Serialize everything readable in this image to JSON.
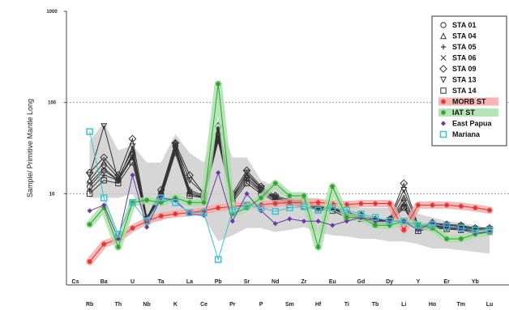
{
  "chart_data": {
    "type": "line",
    "yscale": "log",
    "ylim": [
      1,
      1000
    ],
    "ylabel": "Sample/ Primitive Mantle Long",
    "y_ticks": [
      "1000",
      "100",
      "10"
    ],
    "x_labels_top": [
      "Cs",
      "Ba",
      "U",
      "Ta",
      "La",
      "Pb",
      "Sr",
      "Nd",
      "Zr",
      "Eu",
      "Gd",
      "Dy",
      "Y",
      "Er",
      "Yb"
    ],
    "x_labels_bottom": [
      "Rb",
      "Th",
      "Nb",
      "K",
      "Ce",
      "Pr",
      "P",
      "Sm",
      "Hf",
      "Ti",
      "Tb",
      "Li",
      "Ho",
      "Tm",
      "Lu"
    ],
    "categories": [
      "Cs",
      "Rb",
      "Ba",
      "Th",
      "U",
      "Nb",
      "Ta",
      "K",
      "La",
      "Ce",
      "Pb",
      "Pr",
      "Sr",
      "P",
      "Nd",
      "Sm",
      "Zr",
      "Hf",
      "Eu",
      "Ti",
      "Gd",
      "Tb",
      "Dy",
      "Li",
      "Y",
      "Ho",
      "Er",
      "Tm",
      "Yb",
      "Lu"
    ],
    "grid_lines": [
      100,
      10
    ],
    "legend_position": "top-right",
    "envelope": {
      "color": "#c8c8c8",
      "upper": [
        null,
        38,
        60,
        30,
        34,
        22,
        22,
        45,
        28,
        22,
        65,
        25,
        25,
        14,
        12,
        10,
        9,
        9,
        8,
        8,
        7,
        7,
        7,
        10,
        6,
        5.5,
        5,
        4.8,
        4.5,
        4.2
      ],
      "lower": [
        null,
        9,
        9,
        9,
        10,
        5,
        5,
        6,
        6,
        5.5,
        3,
        3.5,
        4.2,
        4.2,
        3.8,
        4,
        4.3,
        3.8,
        3.5,
        3.4,
        3.2,
        3.2,
        3,
        3,
        2.8,
        2.5,
        2.5,
        2.4,
        2.3,
        2.2
      ]
    },
    "series": [
      {
        "name": "STA 01",
        "marker": "circle",
        "color": "#333333",
        "values": [
          null,
          12,
          18,
          14,
          27,
          5,
          10,
          33,
          10,
          9,
          44,
          9,
          15,
          11,
          9,
          8,
          8,
          7,
          7,
          6,
          5.5,
          5,
          5,
          7,
          4.2,
          4.5,
          4.3,
          4.3,
          4,
          4
        ]
      },
      {
        "name": "STA 04",
        "marker": "triangle",
        "color": "#333333",
        "values": [
          null,
          14,
          22,
          15,
          30,
          5.2,
          10.5,
          36,
          11,
          9.5,
          48,
          9.5,
          16,
          11.5,
          9,
          8,
          8.2,
          7,
          7,
          6,
          5.6,
          5,
          5,
          9,
          4.2,
          4.6,
          4.4,
          4.2,
          4,
          4
        ]
      },
      {
        "name": "STA 05",
        "marker": "plus",
        "color": "#333333",
        "values": [
          null,
          11,
          16,
          14,
          25,
          5,
          9.5,
          30,
          10,
          9,
          40,
          8.5,
          14,
          10.5,
          8.5,
          7.8,
          7.6,
          6.8,
          6.8,
          5.8,
          5.5,
          4.8,
          5,
          7.5,
          4,
          4.3,
          4.2,
          4.1,
          4,
          3.9
        ]
      },
      {
        "name": "STA 06",
        "marker": "x",
        "color": "#333333",
        "values": [
          null,
          13,
          19,
          14,
          26,
          5.1,
          10,
          31,
          10.5,
          9.2,
          42,
          9,
          15,
          10.8,
          8.8,
          8,
          7.8,
          7,
          6.9,
          6,
          5.6,
          5,
          5,
          8,
          4.3,
          4.4,
          4.3,
          4.2,
          4,
          4
        ]
      },
      {
        "name": "STA 09",
        "marker": "diamond",
        "color": "#333333",
        "values": [
          null,
          17,
          25,
          16,
          40,
          5.4,
          11,
          36,
          16,
          10,
          55,
          10,
          18,
          12,
          9.5,
          8.5,
          8.5,
          7.2,
          7.2,
          6.2,
          5.8,
          5.2,
          5.2,
          13,
          4.5,
          4.8,
          4.6,
          4.5,
          4.2,
          4.2
        ]
      },
      {
        "name": "STA 13",
        "marker": "triangle-down",
        "color": "#333333",
        "values": [
          null,
          16,
          55,
          14,
          33,
          5.2,
          10,
          34,
          14,
          10,
          50,
          9,
          17,
          11.5,
          9.2,
          8.2,
          8.3,
          7,
          7,
          6,
          5.7,
          5.1,
          5.1,
          11,
          4.4,
          4.6,
          4.5,
          4.4,
          4.1,
          4.1
        ]
      },
      {
        "name": "STA 14",
        "marker": "square",
        "color": "#333333",
        "values": [
          null,
          10,
          14,
          13,
          22,
          5,
          9,
          28,
          9.5,
          9,
          38,
          8,
          13,
          10,
          8.2,
          7.5,
          7.3,
          6.6,
          6.5,
          5.5,
          5.3,
          4.6,
          4.8,
          7,
          3.9,
          4.2,
          4.1,
          4,
          3.9,
          3.8
        ]
      },
      {
        "name": "MORB ST",
        "marker": "star",
        "color": "#e03030",
        "band": "#f6a8a8",
        "values": [
          null,
          1.8,
          2.8,
          3.2,
          4.2,
          5,
          5.7,
          6,
          6.2,
          6.5,
          7,
          7.2,
          7.5,
          7.6,
          7.8,
          8,
          8,
          8,
          7.8,
          7.6,
          7.8,
          7.8,
          7.8,
          4,
          7.5,
          7.5,
          7.5,
          7.3,
          7,
          6.6
        ]
      },
      {
        "name": "IAT ST",
        "marker": "star",
        "color": "#30a030",
        "band": "#a8e0a8",
        "values": [
          null,
          4.6,
          7,
          2.6,
          8,
          8.5,
          8,
          9,
          8,
          8,
          160,
          6,
          7,
          9,
          13,
          9.5,
          9.5,
          2.6,
          12,
          5.5,
          5.5,
          4.5,
          4.5,
          5,
          4.5,
          4.2,
          3.2,
          3.2,
          3.6,
          3.8
        ]
      },
      {
        "name": "East Papua",
        "marker": "diamond-small",
        "color": "#6a3aa0",
        "values": [
          null,
          6.5,
          7.5,
          3.2,
          16,
          4.3,
          9,
          8.5,
          6,
          5.8,
          17,
          5,
          10,
          6.5,
          4.7,
          5.3,
          5,
          5,
          4.5,
          5,
          5.5,
          5,
          5,
          5,
          4,
          4.8,
          4.5,
          4,
          3.7,
          3.8
        ]
      },
      {
        "name": "Mariana",
        "marker": "square-open",
        "color": "#40c0d0",
        "values": [
          null,
          48,
          9,
          3.6,
          8,
          5,
          9,
          8,
          6.2,
          6.2,
          1.9,
          6.6,
          7.5,
          7,
          6.4,
          7,
          7.2,
          6.6,
          7,
          6.6,
          6,
          5.5,
          5,
          5,
          4.5,
          4.6,
          4.4,
          4.2,
          4,
          4
        ]
      }
    ]
  }
}
